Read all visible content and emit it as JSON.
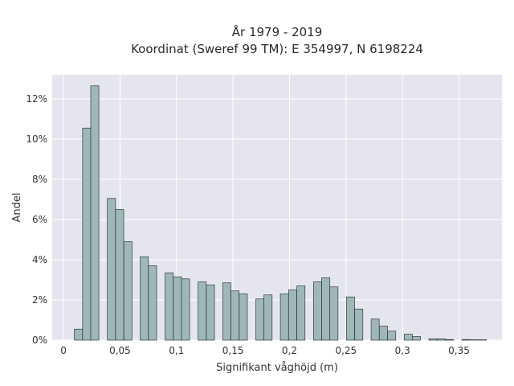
{
  "chart_data": {
    "type": "bar",
    "title": "År 1979 - 2019",
    "subtitle": "Koordinat (Sweref 99 TM): E 354997, N 6198224",
    "xlabel": "Signifikant våghöjd (m)",
    "ylabel": "Andel",
    "xlim": [
      -0.01,
      0.388
    ],
    "ylim": [
      0,
      13.2
    ],
    "grid": true,
    "legend": "none",
    "bar_width": 0.0072,
    "x_ticks": [
      0,
      0.05,
      0.1,
      0.15,
      0.2,
      0.25,
      0.3,
      0.35
    ],
    "x_tick_labels": [
      "0",
      "0,05",
      "0,1",
      "0,15",
      "0,2",
      "0,25",
      "0,3",
      "0,35"
    ],
    "y_ticks": [
      0,
      2,
      4,
      6,
      8,
      10,
      12
    ],
    "y_tick_labels": [
      "0%",
      "2%",
      "4%",
      "6%",
      "8%",
      "10%",
      "12%"
    ],
    "x": [
      0.0132,
      0.0205,
      0.0277,
      0.0424,
      0.0497,
      0.057,
      0.0715,
      0.0788,
      0.0935,
      0.1008,
      0.108,
      0.1227,
      0.13,
      0.1445,
      0.1518,
      0.1591,
      0.1738,
      0.181,
      0.1955,
      0.2028,
      0.2101,
      0.2248,
      0.2321,
      0.2393,
      0.254,
      0.2613,
      0.2758,
      0.2831,
      0.2904,
      0.3051,
      0.3123,
      0.327,
      0.3343,
      0.3416,
      0.3561,
      0.3634,
      0.3707
    ],
    "values": [
      0.55,
      10.55,
      12.65,
      7.05,
      6.5,
      4.9,
      4.15,
      3.7,
      3.35,
      3.15,
      3.05,
      2.9,
      2.75,
      2.85,
      2.45,
      2.3,
      2.05,
      2.25,
      2.3,
      2.5,
      2.7,
      2.9,
      3.1,
      2.65,
      2.15,
      1.55,
      1.05,
      0.7,
      0.45,
      0.3,
      0.18,
      0.07,
      0.07,
      0.03,
      0.03,
      0.02,
      0.02
    ],
    "colors": {
      "plot_background": "#e5e5ef",
      "bar_fill": "#9fb7b8",
      "bar_edge": "#2f3b3b"
    }
  }
}
